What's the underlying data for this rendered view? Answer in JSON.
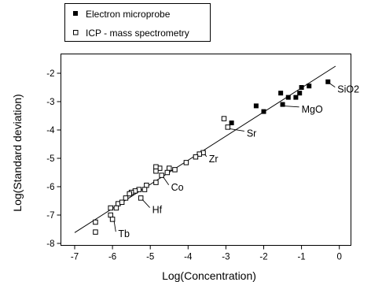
{
  "chart_data": {
    "type": "scatter",
    "xlabel": "Log(Concentration)",
    "ylabel": "Log(Standard deviation)",
    "xlim": [
      -7.3,
      0.3
    ],
    "ylim": [
      -8.1,
      -1.5
    ],
    "x_ticks": [
      -7,
      -6,
      -5,
      -4,
      -3,
      -2,
      -1,
      0
    ],
    "y_ticks": [
      -8,
      -7,
      -6,
      -5,
      -4,
      -3,
      -2
    ],
    "grid": false,
    "legend_position": "top-left, outside plot",
    "fit_line": {
      "x": [
        -7.0,
        -0.1
      ],
      "y": [
        -7.62,
        -1.75
      ]
    },
    "series": [
      {
        "name": "Electron microprobe",
        "marker": "filled-square",
        "color": "#000000",
        "points": [
          [
            -0.3,
            -2.3
          ],
          [
            -0.8,
            -2.45
          ],
          [
            -1.0,
            -2.5
          ],
          [
            -1.05,
            -2.7
          ],
          [
            -1.15,
            -2.85
          ],
          [
            -1.35,
            -2.85
          ],
          [
            -1.55,
            -2.7
          ],
          [
            -1.5,
            -3.1
          ],
          [
            -2.0,
            -3.35
          ],
          [
            -2.2,
            -3.15
          ],
          [
            -2.85,
            -3.75
          ]
        ]
      },
      {
        "name": "ICP - mass spectrometry",
        "marker": "open-square",
        "color": "#000000",
        "points": [
          [
            -3.05,
            -3.6
          ],
          [
            -2.95,
            -3.9
          ],
          [
            -3.6,
            -4.8
          ],
          [
            -3.7,
            -4.85
          ],
          [
            -3.8,
            -4.95
          ],
          [
            -4.05,
            -5.15
          ],
          [
            -4.35,
            -5.4
          ],
          [
            -4.5,
            -5.35
          ],
          [
            -4.55,
            -5.5
          ],
          [
            -4.75,
            -5.35
          ],
          [
            -4.85,
            -5.3
          ],
          [
            -4.85,
            -5.45
          ],
          [
            -4.7,
            -5.6
          ],
          [
            -4.85,
            -5.85
          ],
          [
            -5.1,
            -5.95
          ],
          [
            -5.15,
            -6.1
          ],
          [
            -5.3,
            -6.1
          ],
          [
            -5.4,
            -6.15
          ],
          [
            -5.5,
            -6.2
          ],
          [
            -5.55,
            -6.25
          ],
          [
            -5.65,
            -6.4
          ],
          [
            -5.85,
            -6.6
          ],
          [
            -5.9,
            -6.75
          ],
          [
            -6.05,
            -6.75
          ],
          [
            -5.75,
            -6.55
          ],
          [
            -5.25,
            -6.4
          ],
          [
            -6.05,
            -7.0
          ],
          [
            -6.0,
            -7.15
          ],
          [
            -6.45,
            -7.25
          ],
          [
            -6.45,
            -7.6
          ]
        ]
      }
    ],
    "annotations": [
      {
        "text": "SiO2",
        "x": -0.05,
        "y": -2.6
      },
      {
        "text": "MgO",
        "x": -1.0,
        "y": -3.3
      },
      {
        "text": "Sr",
        "x": -2.45,
        "y": -4.15
      },
      {
        "text": "Zr",
        "x": -3.45,
        "y": -5.05
      },
      {
        "text": "Co",
        "x": -4.45,
        "y": -6.05
      },
      {
        "text": "Hf",
        "x": -4.95,
        "y": -6.85
      },
      {
        "text": "Tb",
        "x": -5.85,
        "y": -7.7
      }
    ]
  }
}
